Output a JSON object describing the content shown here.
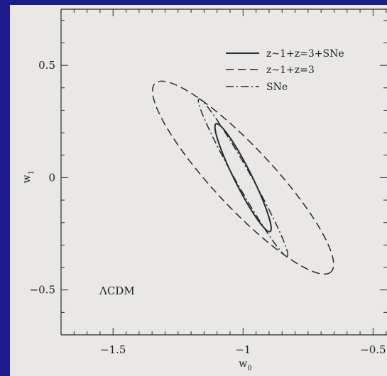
{
  "chart_data": {
    "type": "contour",
    "xlabel": "w",
    "xlabel_sub": "0",
    "ylabel": "w",
    "ylabel_sub": "1",
    "xlim": [
      -1.7,
      -0.4
    ],
    "ylim": [
      -0.7,
      0.75
    ],
    "xticks": [
      -1.5,
      -1,
      -0.5
    ],
    "xtick_labels": [
      "−1.5",
      "−1",
      "−0.5"
    ],
    "yticks": [
      -0.5,
      0,
      0.5
    ],
    "ytick_labels": [
      "−0.5",
      "0",
      "0.5"
    ],
    "legend_position": "top-right",
    "annotation": "ΛCDM",
    "series": [
      {
        "name": "z~1+z=3+SNe",
        "line_style": "solid",
        "ellipse": {
          "center": [
            -1.0,
            0.0
          ],
          "vertex_a": [
            -1.104,
            0.24
          ],
          "vertex_b": [
            -0.896,
            -0.24
          ],
          "semi_minor": 0.033
        }
      },
      {
        "name": "z~1+z=3",
        "line_style": "dashed",
        "ellipse": {
          "center": [
            -1.0,
            0.0
          ],
          "vertex_a": [
            -1.338,
            0.42
          ],
          "vertex_b": [
            -0.662,
            -0.42
          ],
          "semi_minor": 0.115
        }
      },
      {
        "name": "SNe",
        "line_style": "dash-dot",
        "ellipse": {
          "center": [
            -1.0,
            0.0
          ],
          "vertex_a": [
            -1.17,
            0.35
          ],
          "vertex_b": [
            -0.83,
            -0.35
          ],
          "semi_minor": 0.03
        }
      }
    ]
  }
}
